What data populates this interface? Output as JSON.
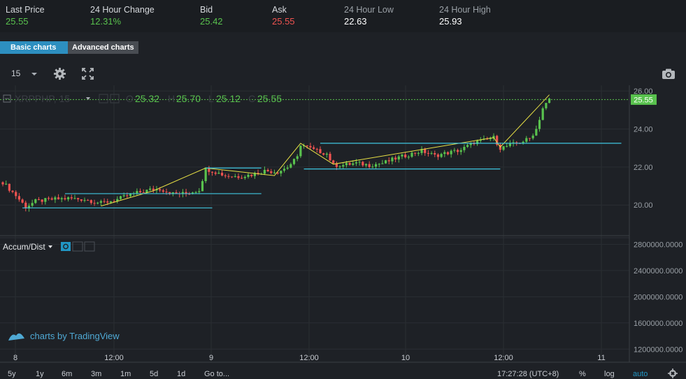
{
  "ticker": [
    {
      "label": "Last Price",
      "value": "25.55",
      "color": "green"
    },
    {
      "label": "24 Hour Change",
      "value": "12.31%",
      "color": "green"
    },
    {
      "label": "Bid",
      "value": "25.42",
      "color": "green"
    },
    {
      "label": "Ask",
      "value": "25.55",
      "color": "red"
    },
    {
      "label": "24 Hour Low",
      "value": "22.63",
      "color": "white"
    },
    {
      "label": "24 Hour High",
      "value": "25.93",
      "color": "white"
    }
  ],
  "chart_tabs": {
    "basic": "Basic charts",
    "advanced": "Advanced charts",
    "active": "basic"
  },
  "toolbar": {
    "interval": "15",
    "icons": [
      "chevron-down-icon",
      "gear-icon",
      "fullscreen-icon",
      "camera-icon"
    ]
  },
  "legend": {
    "symbol": "XRPPHP, 15",
    "o_label": "O",
    "o": "25.32",
    "h_label": "H",
    "h": "25.70",
    "l_label": "L",
    "l": "25.12",
    "c_label": "C",
    "c": "25.55"
  },
  "indicator": {
    "name": "Accum/Dist"
  },
  "watermark": "charts by TradingView",
  "bottom_bar": {
    "ranges": [
      "5y",
      "1y",
      "6m",
      "3m",
      "1m",
      "5d",
      "1d"
    ],
    "goto": "Go to...",
    "time": "17:27:28 (UTC+8)",
    "percent": "%",
    "log": "log",
    "auto": "auto",
    "settings_icon": "gear-icon"
  },
  "colors": {
    "up": "#59c24e",
    "down": "#ef5350",
    "accent": "#2196c4",
    "trendline_yellow": "#e8e045",
    "trendline_cyan": "#3ec6e0"
  },
  "chart_data": {
    "type": "candlestick",
    "symbol": "XRPPHP",
    "interval": "15",
    "price_axis": {
      "range": [
        18.5,
        26.3
      ],
      "ticks": [
        "20.00",
        "22.00",
        "24.00",
        "26.00"
      ],
      "last_price_label": "25.55"
    },
    "indicator_axis": {
      "range": [
        1000000,
        2900000
      ],
      "ticks": [
        "1200000.0000",
        "1600000.0000",
        "2000000.0000",
        "2400000.0000",
        "2800000.0000"
      ]
    },
    "time_axis": {
      "labels": [
        "8",
        "12:00",
        "9",
        "12:00",
        "10",
        "12:00",
        "11"
      ]
    },
    "price_path": [
      [
        0,
        21.2
      ],
      [
        4,
        20.5
      ],
      [
        7,
        19.9
      ],
      [
        10,
        20.2
      ],
      [
        15,
        20.3
      ],
      [
        20,
        20.35
      ],
      [
        25,
        20.3
      ],
      [
        30,
        20.1
      ],
      [
        35,
        20.3
      ],
      [
        40,
        20.6
      ],
      [
        45,
        20.8
      ],
      [
        48,
        20.85
      ],
      [
        52,
        20.6
      ],
      [
        56,
        20.6
      ],
      [
        60,
        20.8
      ],
      [
        62,
        21.9
      ],
      [
        64,
        21.8
      ],
      [
        68,
        21.55
      ],
      [
        72,
        21.5
      ],
      [
        76,
        21.6
      ],
      [
        80,
        21.8
      ],
      [
        84,
        21.75
      ],
      [
        87,
        22.0
      ],
      [
        90,
        22.5
      ],
      [
        91,
        23.2
      ],
      [
        95,
        22.9
      ],
      [
        99,
        22.7
      ],
      [
        101,
        22.1
      ],
      [
        104,
        22.1
      ],
      [
        108,
        22.2
      ],
      [
        112,
        22.1
      ],
      [
        116,
        22.2
      ],
      [
        120,
        22.45
      ],
      [
        124,
        22.65
      ],
      [
        128,
        22.85
      ],
      [
        132,
        22.6
      ],
      [
        136,
        22.75
      ],
      [
        140,
        22.9
      ],
      [
        144,
        23.3
      ],
      [
        147,
        23.4
      ],
      [
        150,
        23.55
      ],
      [
        152,
        23.0
      ],
      [
        155,
        23.15
      ],
      [
        158,
        23.3
      ],
      [
        161,
        23.5
      ],
      [
        163,
        24.0
      ],
      [
        165,
        25.1
      ],
      [
        167,
        25.55
      ]
    ],
    "trendlines": {
      "yellow_zigzag": [
        [
          30,
          19.95
        ],
        [
          46,
          20.75
        ],
        [
          62,
          21.95
        ],
        [
          83,
          21.55
        ],
        [
          91,
          23.25
        ],
        [
          101,
          22.15
        ],
        [
          150,
          23.55
        ],
        [
          152,
          23.05
        ],
        [
          167,
          25.8
        ]
      ],
      "cyan_levels": [
        {
          "x": [
            6,
            64
          ],
          "y": 19.85
        },
        {
          "x": [
            19,
            79
          ],
          "y": 20.6
        },
        {
          "x": [
            62,
            79
          ],
          "y": 21.95
        },
        {
          "x": [
            92,
            152
          ],
          "y": 21.9
        },
        {
          "x": [
            97,
            189
          ],
          "y": 23.25
        }
      ]
    }
  }
}
